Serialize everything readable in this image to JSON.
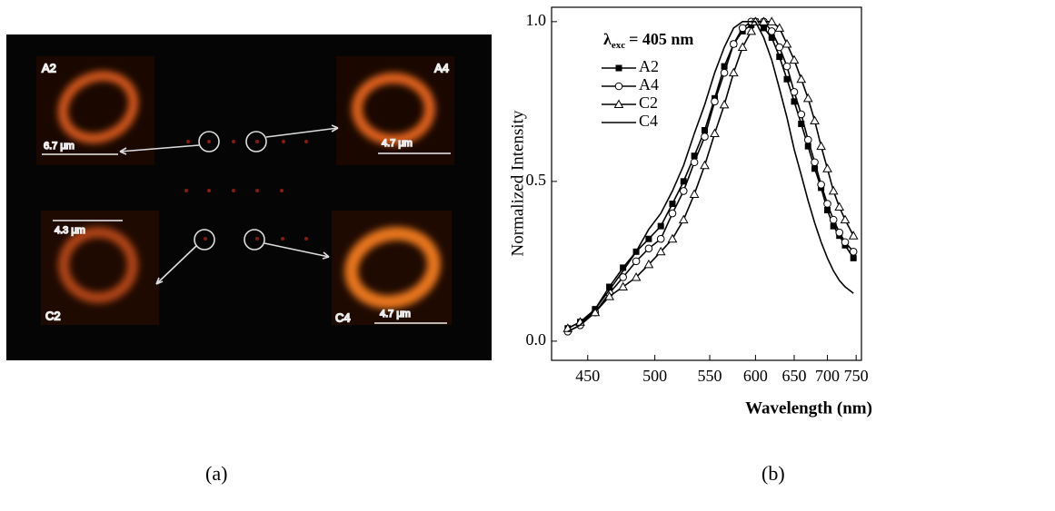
{
  "image_panel": {
    "insets": [
      {
        "label": "A2",
        "scale": "6.7 μm"
      },
      {
        "label": "A4",
        "scale": "4.7 μm"
      },
      {
        "label": "C2",
        "scale": "4.3 μm"
      },
      {
        "label": "C4",
        "scale": "4.7 μm"
      }
    ]
  },
  "panel_labels": [
    "(a)",
    "(b)"
  ],
  "chart_data": {
    "type": "line",
    "xlabel": "Wavelength (nm)",
    "ylabel": "Normalized Intensity",
    "annotation": {
      "symbol": "λ",
      "subscript": "exc",
      "text": "= 405 nm"
    },
    "xscale": "reciprocal",
    "xlim": [
      427,
      760
    ],
    "xticks": [
      450,
      500,
      550,
      600,
      650,
      700,
      750
    ],
    "ylim": [
      -0.06,
      1.045
    ],
    "yticks": [
      {
        "value": 0,
        "label": "0.0"
      },
      {
        "value": 0.5,
        "label": "0.5"
      },
      {
        "value": 1,
        "label": "1.0"
      }
    ],
    "x": [
      437,
      445,
      455,
      465,
      475,
      485,
      495,
      505,
      515,
      525,
      535,
      545,
      555,
      565,
      575,
      585,
      595,
      600,
      610,
      620,
      630,
      640,
      650,
      660,
      670,
      680,
      690,
      700,
      710,
      720,
      730,
      745
    ],
    "series": [
      {
        "name": "A2",
        "color": "#000000",
        "marker": "filled-square",
        "values": [
          0.04,
          0.06,
          0.1,
          0.17,
          0.23,
          0.28,
          0.32,
          0.36,
          0.43,
          0.5,
          0.58,
          0.66,
          0.76,
          0.86,
          0.93,
          0.97,
          0.99,
          1.0,
          0.98,
          0.95,
          0.89,
          0.82,
          0.75,
          0.68,
          0.61,
          0.54,
          0.48,
          0.41,
          0.36,
          0.33,
          0.3,
          0.26
        ]
      },
      {
        "name": "A4",
        "color": "#000000",
        "marker": "open-circle",
        "values": [
          0.03,
          0.05,
          0.09,
          0.15,
          0.2,
          0.25,
          0.29,
          0.32,
          0.4,
          0.47,
          0.56,
          0.64,
          0.75,
          0.84,
          0.93,
          0.98,
          1.0,
          1.0,
          1.0,
          0.97,
          0.92,
          0.86,
          0.78,
          0.71,
          0.63,
          0.56,
          0.49,
          0.43,
          0.38,
          0.34,
          0.31,
          0.28
        ]
      },
      {
        "name": "C2",
        "color": "#000000",
        "marker": "open-triangle",
        "values": [
          0.04,
          0.06,
          0.09,
          0.14,
          0.17,
          0.2,
          0.24,
          0.28,
          0.32,
          0.38,
          0.46,
          0.55,
          0.65,
          0.74,
          0.84,
          0.92,
          0.97,
          1.0,
          1.0,
          1.0,
          0.98,
          0.93,
          0.88,
          0.82,
          0.76,
          0.69,
          0.61,
          0.54,
          0.47,
          0.42,
          0.38,
          0.33
        ]
      },
      {
        "name": "C4",
        "color": "#000000",
        "marker": "none",
        "values": [
          0.03,
          0.05,
          0.1,
          0.16,
          0.22,
          0.28,
          0.35,
          0.4,
          0.47,
          0.55,
          0.65,
          0.74,
          0.84,
          0.92,
          0.98,
          1.0,
          1.0,
          1.0,
          0.95,
          0.88,
          0.79,
          0.7,
          0.6,
          0.52,
          0.44,
          0.37,
          0.31,
          0.26,
          0.22,
          0.19,
          0.17,
          0.15
        ]
      }
    ]
  }
}
